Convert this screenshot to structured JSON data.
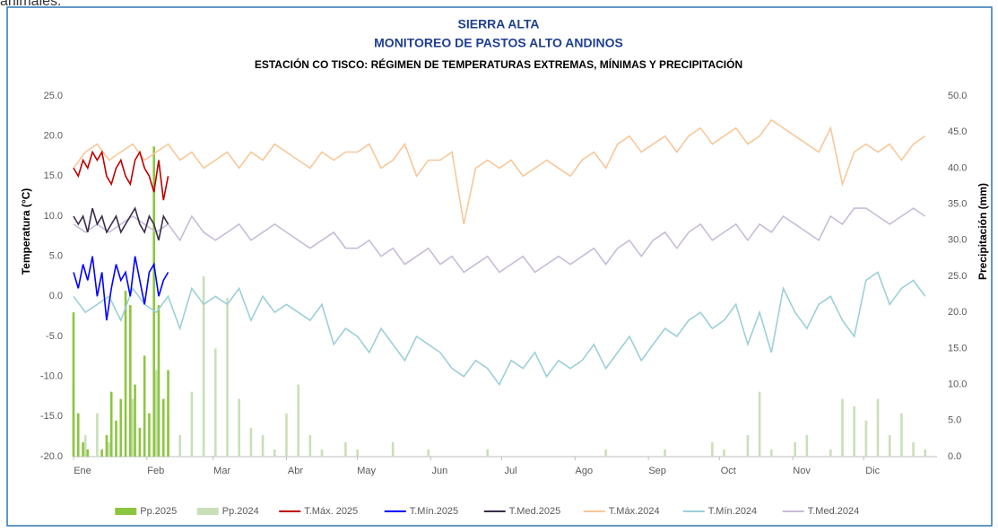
{
  "top_text": "animales.",
  "chart_data": {
    "type": "combo",
    "title": "SIERRA ALTA",
    "subtitle": "MONITOREO DE PASTOS ALTO ANDINOS",
    "subtitle2": "ESTACIÓN CO TISCO: RÉGIMEN DE TEMPERATURAS EXTREMAS, MÍNIMAS Y PRECIPITACIÓN",
    "y_label": "Temperatura (°C)",
    "y2_label": "Precipitación (mm)",
    "xlim": [
      1,
      366
    ],
    "xticks": [
      {
        "value": 1,
        "label": "Ene"
      },
      {
        "value": 32,
        "label": "Feb"
      },
      {
        "value": 60,
        "label": "Mar"
      },
      {
        "value": 91,
        "label": "Abr"
      },
      {
        "value": 121,
        "label": "May"
      },
      {
        "value": 152,
        "label": "Jun"
      },
      {
        "value": 182,
        "label": "Jul"
      },
      {
        "value": 213,
        "label": "Ago"
      },
      {
        "value": 244,
        "label": "Sep"
      },
      {
        "value": 274,
        "label": "Oct"
      },
      {
        "value": 305,
        "label": "Nov"
      },
      {
        "value": 335,
        "label": "Dic"
      }
    ],
    "ylim": [
      -20,
      25
    ],
    "yticks": [
      {
        "value": -20,
        "label": "-20.0"
      },
      {
        "value": -15,
        "label": "-15.0"
      },
      {
        "value": -10,
        "label": "-10.0"
      },
      {
        "value": -5,
        "label": "-5.0"
      },
      {
        "value": 0,
        "label": "0.0"
      },
      {
        "value": 5,
        "label": "5.0"
      },
      {
        "value": 10,
        "label": "10.0"
      },
      {
        "value": 15,
        "label": "15.0"
      },
      {
        "value": 20,
        "label": "20.0"
      },
      {
        "value": 25,
        "label": "25.0"
      }
    ],
    "y2lim": [
      0,
      50
    ],
    "y2ticks": [
      {
        "value": 0,
        "label": "0.0"
      },
      {
        "value": 5,
        "label": "5.0"
      },
      {
        "value": 10,
        "label": "10.0"
      },
      {
        "value": 15,
        "label": "15.0"
      },
      {
        "value": 20,
        "label": "20.0"
      },
      {
        "value": 25,
        "label": "25.0"
      },
      {
        "value": 30,
        "label": "30.0"
      },
      {
        "value": 35,
        "label": "35.0"
      },
      {
        "value": 40,
        "label": "40.0"
      },
      {
        "value": 45,
        "label": "45.0"
      },
      {
        "value": 50,
        "label": "50.0"
      }
    ],
    "legend": "bottom",
    "series": [
      {
        "name": "Pp.2025",
        "type": "bar",
        "axis": "y2",
        "color": "#8cc63f",
        "x": [
          1,
          3,
          5,
          7,
          9,
          11,
          13,
          15,
          17,
          19,
          21,
          23,
          25,
          27,
          29,
          31,
          33,
          35,
          37,
          39,
          41
        ],
        "values": [
          20,
          6,
          2,
          1,
          0,
          0,
          1,
          3,
          9,
          5,
          8,
          23,
          21,
          10,
          4,
          14,
          6,
          43,
          21,
          8,
          12
        ]
      },
      {
        "name": "Pp.2024",
        "type": "bar",
        "axis": "y2",
        "color": "#c9dfb9",
        "x": [
          1,
          6,
          11,
          16,
          21,
          26,
          31,
          36,
          41,
          46,
          51,
          56,
          61,
          66,
          71,
          76,
          81,
          86,
          91,
          96,
          101,
          106,
          111,
          116,
          121,
          126,
          131,
          136,
          141,
          146,
          151,
          156,
          161,
          166,
          171,
          176,
          181,
          186,
          191,
          196,
          201,
          206,
          211,
          216,
          221,
          226,
          231,
          236,
          241,
          246,
          251,
          256,
          261,
          266,
          271,
          276,
          281,
          286,
          291,
          296,
          301,
          306,
          311,
          316,
          321,
          326,
          331,
          336,
          341,
          346,
          351,
          356,
          361
        ],
        "values": [
          10,
          3,
          6,
          2,
          5,
          8,
          4,
          12,
          6,
          3,
          9,
          25,
          15,
          22,
          8,
          4,
          3,
          1,
          6,
          10,
          3,
          1,
          0,
          2,
          1,
          0,
          0,
          2,
          0,
          0,
          1,
          0,
          0,
          0,
          0,
          1,
          0,
          0,
          0,
          0,
          0,
          0,
          0,
          0,
          0,
          1,
          0,
          0,
          0,
          0,
          1,
          0,
          0,
          0,
          2,
          1,
          0,
          3,
          9,
          1,
          0,
          2,
          3,
          0,
          1,
          8,
          7,
          5,
          8,
          3,
          6,
          2,
          1
        ]
      },
      {
        "name": "T.Máx. 2025",
        "type": "line",
        "color": "#c00000",
        "x": [
          1,
          3,
          5,
          7,
          9,
          11,
          13,
          15,
          17,
          19,
          21,
          23,
          25,
          27,
          29,
          31,
          33,
          35,
          37,
          39,
          41
        ],
        "values": [
          16,
          15,
          17,
          16,
          18,
          17,
          18,
          15,
          14,
          16,
          17,
          15,
          14,
          17,
          18,
          16,
          15,
          13,
          17,
          12,
          15
        ]
      },
      {
        "name": "T.Mín.2025",
        "type": "line",
        "color": "#0000ff",
        "x": [
          1,
          3,
          5,
          7,
          9,
          11,
          13,
          15,
          17,
          19,
          21,
          23,
          25,
          27,
          29,
          31,
          33,
          35,
          37,
          39,
          41
        ],
        "values": [
          3,
          1,
          4,
          2,
          5,
          0,
          3,
          -3,
          1,
          4,
          2,
          3,
          0,
          5,
          2,
          -1,
          3,
          4,
          0,
          2,
          3
        ]
      },
      {
        "name": "T.Med.2025",
        "type": "line",
        "color": "#3b2d4a",
        "x": [
          1,
          3,
          5,
          7,
          9,
          11,
          13,
          15,
          17,
          19,
          21,
          23,
          25,
          27,
          29,
          31,
          33,
          35,
          37,
          39,
          41
        ],
        "values": [
          10,
          9,
          10,
          8,
          11,
          9,
          10,
          8,
          9,
          10,
          8,
          9,
          10,
          11,
          9,
          8,
          10,
          9,
          7,
          10,
          9
        ]
      },
      {
        "name": "T.Máx.2024",
        "type": "line",
        "color": "#f8c79a",
        "x": [
          1,
          6,
          11,
          16,
          21,
          26,
          31,
          36,
          41,
          46,
          51,
          56,
          61,
          66,
          71,
          76,
          81,
          86,
          91,
          96,
          101,
          106,
          111,
          116,
          121,
          126,
          131,
          136,
          141,
          146,
          151,
          156,
          161,
          166,
          171,
          176,
          181,
          186,
          191,
          196,
          201,
          206,
          211,
          216,
          221,
          226,
          231,
          236,
          241,
          246,
          251,
          256,
          261,
          266,
          271,
          276,
          281,
          286,
          291,
          296,
          301,
          306,
          311,
          316,
          321,
          326,
          331,
          336,
          341,
          346,
          351,
          356,
          361
        ],
        "values": [
          16,
          18,
          19,
          17,
          18,
          19,
          17,
          18,
          19,
          17,
          18,
          16,
          17,
          18,
          16,
          18,
          17,
          19,
          18,
          17,
          16,
          18,
          17,
          18,
          18,
          19,
          16,
          17,
          19,
          15,
          17,
          17,
          18,
          9,
          16,
          17,
          16,
          17,
          15,
          16,
          17,
          16,
          15,
          17,
          18,
          16,
          19,
          20,
          18,
          19,
          20,
          18,
          20,
          21,
          19,
          20,
          21,
          19,
          20,
          22,
          21,
          20,
          19,
          18,
          21,
          14,
          18,
          19,
          18,
          19,
          17,
          19,
          20
        ]
      },
      {
        "name": "T.Mín.2024",
        "type": "line",
        "color": "#9ccfd8",
        "x": [
          1,
          6,
          11,
          16,
          21,
          26,
          31,
          36,
          41,
          46,
          51,
          56,
          61,
          66,
          71,
          76,
          81,
          86,
          91,
          96,
          101,
          106,
          111,
          116,
          121,
          126,
          131,
          136,
          141,
          146,
          151,
          156,
          161,
          166,
          171,
          176,
          181,
          186,
          191,
          196,
          201,
          206,
          211,
          216,
          221,
          226,
          231,
          236,
          241,
          246,
          251,
          256,
          261,
          266,
          271,
          276,
          281,
          286,
          291,
          296,
          301,
          306,
          311,
          316,
          321,
          326,
          331,
          336,
          341,
          346,
          351,
          356,
          361
        ],
        "values": [
          0,
          -2,
          -1,
          0,
          -3,
          1,
          -1,
          -2,
          0,
          -4,
          1,
          -1,
          0,
          -1,
          1,
          -3,
          0,
          -2,
          -1,
          -2,
          -3,
          -1,
          -6,
          -4,
          -5,
          -7,
          -4,
          -6,
          -8,
          -5,
          -6,
          -7,
          -9,
          -10,
          -8,
          -9,
          -11,
          -8,
          -9,
          -7,
          -10,
          -8,
          -9,
          -8,
          -6,
          -9,
          -7,
          -5,
          -8,
          -6,
          -4,
          -5,
          -3,
          -2,
          -4,
          -3,
          -1,
          -6,
          -2,
          -7,
          1,
          -2,
          -4,
          -1,
          0,
          -3,
          -5,
          2,
          3,
          -1,
          1,
          2,
          0
        ]
      },
      {
        "name": "T.Med.2024",
        "type": "line",
        "color": "#c7bcd9",
        "x": [
          1,
          6,
          11,
          16,
          21,
          26,
          31,
          36,
          41,
          46,
          51,
          56,
          61,
          66,
          71,
          76,
          81,
          86,
          91,
          96,
          101,
          106,
          111,
          116,
          121,
          126,
          131,
          136,
          141,
          146,
          151,
          156,
          161,
          166,
          171,
          176,
          181,
          186,
          191,
          196,
          201,
          206,
          211,
          216,
          221,
          226,
          231,
          236,
          241,
          246,
          251,
          256,
          261,
          266,
          271,
          276,
          281,
          286,
          291,
          296,
          301,
          306,
          311,
          316,
          321,
          326,
          331,
          336,
          341,
          346,
          351,
          356,
          361
        ],
        "values": [
          9,
          8,
          9,
          8,
          9,
          10,
          9,
          8,
          9,
          7,
          10,
          8,
          7,
          8,
          9,
          7,
          8,
          9,
          8,
          7,
          6,
          7,
          8,
          6,
          6,
          7,
          5,
          6,
          4,
          5,
          6,
          4,
          5,
          3,
          4,
          5,
          3,
          4,
          5,
          3,
          4,
          5,
          4,
          5,
          6,
          4,
          6,
          7,
          5,
          7,
          8,
          6,
          8,
          9,
          7,
          8,
          9,
          7,
          9,
          8,
          10,
          9,
          8,
          7,
          10,
          9,
          11,
          11,
          10,
          9,
          10,
          11,
          10
        ]
      }
    ]
  }
}
